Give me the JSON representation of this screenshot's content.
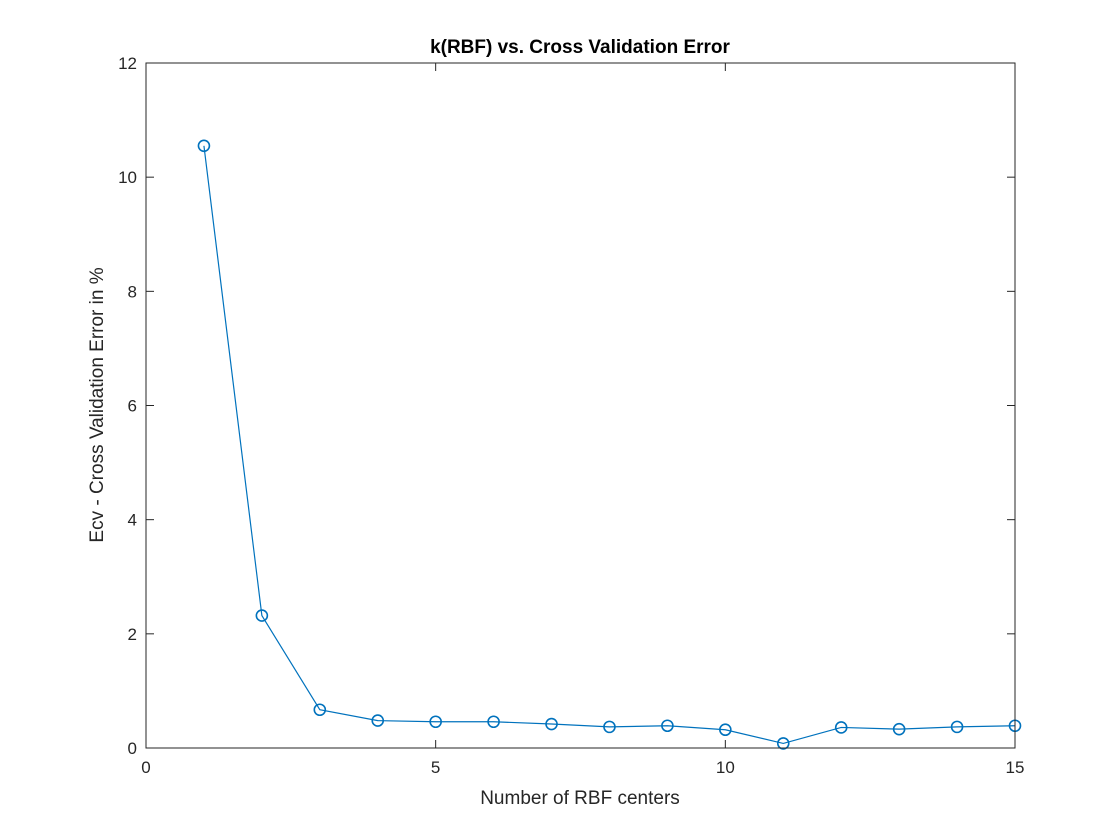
{
  "chart_data": {
    "type": "line",
    "title": "k(RBF) vs. Cross Validation Error",
    "xlabel": "Number of RBF centers",
    "ylabel": "Ecv - Cross Validation Error in %",
    "xlim": [
      0,
      15
    ],
    "ylim": [
      0,
      12
    ],
    "xticks": [
      0,
      5,
      10,
      15
    ],
    "yticks": [
      0,
      2,
      4,
      6,
      8,
      10,
      12
    ],
    "grid": false,
    "marker": "circle",
    "series": [
      {
        "color": "#0072BD",
        "x": [
          1,
          2,
          3,
          4,
          5,
          6,
          7,
          8,
          9,
          10,
          11,
          12,
          13,
          14,
          15
        ],
        "values": [
          10.55,
          2.32,
          0.67,
          0.48,
          0.46,
          0.46,
          0.42,
          0.37,
          0.39,
          0.32,
          0.08,
          0.36,
          0.33,
          0.37,
          0.39
        ]
      }
    ]
  }
}
